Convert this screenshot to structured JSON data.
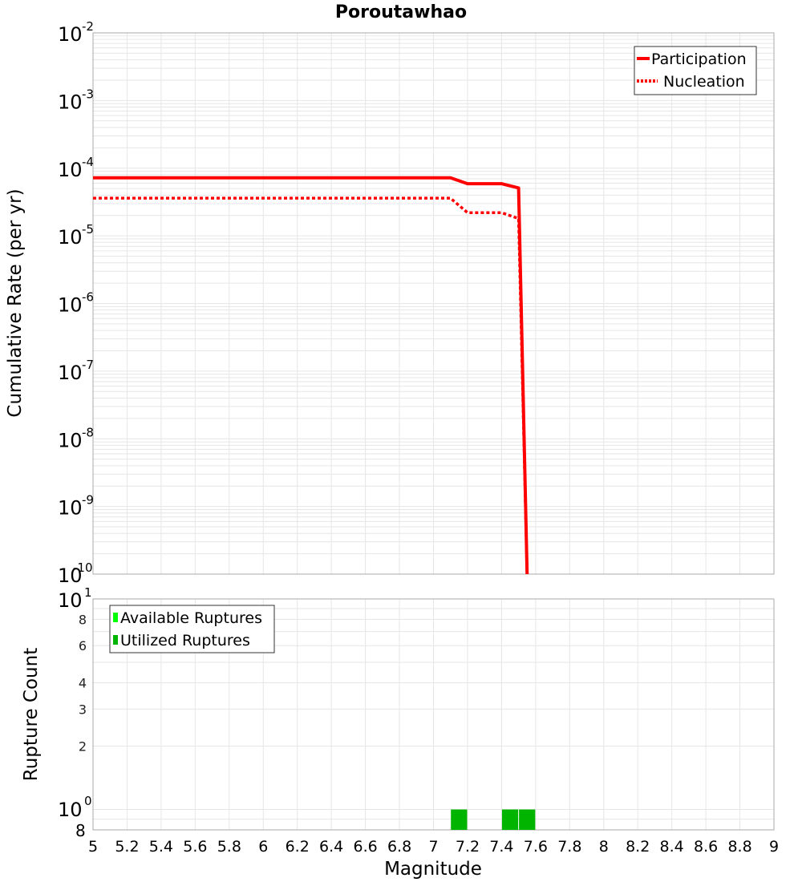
{
  "title": "Poroutawhao",
  "chart_data": [
    {
      "type": "line",
      "title": "Poroutawhao",
      "xlabel": "Magnitude",
      "ylabel": "Cumulative Rate (per yr)",
      "yscale": "log",
      "xlim": [
        5,
        9
      ],
      "ylim": [
        1e-10,
        0.01
      ],
      "y_tick_labels": [
        "10^-2",
        "10^-3",
        "10^-4",
        "10^-5",
        "10^-6",
        "10^-7",
        "10^-8",
        "10^-9",
        "10^-10"
      ],
      "grid": true,
      "legend_position": "top-right",
      "series": [
        {
          "name": "Participation",
          "style": "solid",
          "color": "#ff0000",
          "x": [
            5.0,
            7.1,
            7.2,
            7.4,
            7.5,
            7.55
          ],
          "y": [
            7.2e-05,
            7.2e-05,
            5.9e-05,
            5.9e-05,
            5.1e-05,
            1e-10
          ]
        },
        {
          "name": "Nucleation",
          "style": "dotted",
          "color": "#ff0000",
          "x": [
            5.0,
            7.1,
            7.2,
            7.4,
            7.5,
            7.55
          ],
          "y": [
            3.6e-05,
            3.6e-05,
            2.2e-05,
            2.2e-05,
            1.8e-05,
            1e-10
          ]
        }
      ]
    },
    {
      "type": "bar",
      "xlabel": "Magnitude",
      "ylabel": "Rupture Count",
      "yscale": "log",
      "xlim": [
        5,
        9
      ],
      "ylim": [
        0.8,
        10
      ],
      "y_tick_labels": [
        "8",
        "10^0",
        "2",
        "3",
        "4",
        "6",
        "8",
        "10^1"
      ],
      "x_tick_labels": [
        "5",
        "5.2",
        "5.4",
        "5.6",
        "5.8",
        "6",
        "6.2",
        "6.4",
        "6.6",
        "6.8",
        "7",
        "7.2",
        "7.4",
        "7.6",
        "7.8",
        "8",
        "8.2",
        "8.4",
        "8.6",
        "8.8",
        "9"
      ],
      "legend_position": "top-left",
      "series": [
        {
          "name": "Available Ruptures",
          "color": "#00ff00",
          "x": [
            7.15,
            7.45,
            7.55
          ],
          "values": [
            1,
            1,
            1
          ]
        },
        {
          "name": "Utilized Ruptures",
          "color": "#00b400",
          "x": [
            7.15,
            7.45,
            7.55
          ],
          "values": [
            1,
            1,
            1
          ]
        }
      ]
    }
  ],
  "legend_top": {
    "participation": "Participation",
    "nucleation": "Nucleation"
  },
  "legend_bottom": {
    "available": "Available Ruptures",
    "utilized": "Utilized Ruptures"
  },
  "labels": {
    "ylabel_top": "Cumulative Rate (per yr)",
    "ylabel_bottom": "Rupture Count",
    "xlabel": "Magnitude"
  },
  "colors": {
    "line": "#ff0000",
    "available": "#00ff00",
    "utilized": "#00b400",
    "grid": "#e6e6e6",
    "frame": "#aaaaaa"
  }
}
